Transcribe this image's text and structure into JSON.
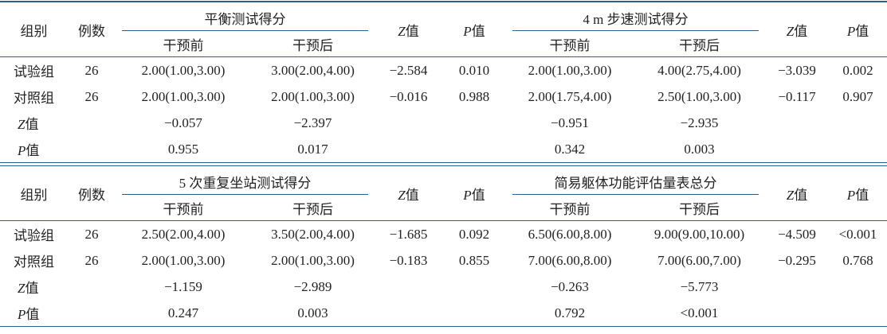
{
  "blocks": [
    {
      "header": {
        "group": "组别",
        "n": "例数",
        "scales": [
          {
            "title": "平衡测试得分",
            "pre": "干预前",
            "post": "干预后",
            "z": {
              "sym": "Z",
              "word": "值"
            },
            "p": {
              "sym": "P",
              "word": "值"
            }
          },
          {
            "title": "4 m 步速测试得分",
            "pre": "干预前",
            "post": "干预后",
            "z": {
              "sym": "Z",
              "word": "值"
            },
            "p": {
              "sym": "P",
              "word": "值"
            }
          }
        ]
      },
      "rows": [
        {
          "label": "试验组",
          "n": "26",
          "values": [
            "2.00(1.00,3.00)",
            "3.00(2.00,4.00)",
            "−2.584",
            "0.010",
            "2.00(1.00,3.00)",
            "4.00(2.75,4.00)",
            "−3.039",
            "0.002"
          ]
        },
        {
          "label": "对照组",
          "n": "26",
          "values": [
            "2.00(1.00,3.00)",
            "2.00(1.00,3.00)",
            "−0.016",
            "0.988",
            "2.00(1.75,4.00)",
            "2.50(1.00,3.00)",
            "−0.117",
            "0.907"
          ]
        },
        {
          "label": {
            "sym": "Z",
            "word": "值"
          },
          "n": null,
          "values": [
            "−0.057",
            "−2.397",
            null,
            null,
            "−0.951",
            "−2.935",
            null,
            null
          ]
        },
        {
          "label": {
            "sym": "P",
            "word": "值"
          },
          "n": null,
          "values": [
            "0.955",
            "0.017",
            null,
            null,
            "0.342",
            "0.003",
            null,
            null
          ]
        }
      ]
    },
    {
      "header": {
        "group": "组别",
        "n": "例数",
        "scales": [
          {
            "title": "5 次重复坐站测试得分",
            "pre": "干预前",
            "post": "干预后",
            "z": {
              "sym": "Z",
              "word": "值"
            },
            "p": {
              "sym": "P",
              "word": "值"
            }
          },
          {
            "title": "简易躯体功能评估量表总分",
            "pre": "干预前",
            "post": "干预后",
            "z": {
              "sym": "Z",
              "word": "值"
            },
            "p": {
              "sym": "P",
              "word": "值"
            }
          }
        ]
      },
      "rows": [
        {
          "label": "试验组",
          "n": "26",
          "values": [
            "2.50(2.00,4.00)",
            "3.50(2.00,4.00)",
            "−1.685",
            "0.092",
            "6.50(6.00,8.00)",
            "9.00(9.00,10.00)",
            "−4.509",
            "<0.001"
          ]
        },
        {
          "label": "对照组",
          "n": "26",
          "values": [
            "2.00(1.00,3.00)",
            "2.00(1.00,3.00)",
            "−0.183",
            "0.855",
            "7.00(6.00,8.00)",
            "7.00(6.00,7.00)",
            "−0.295",
            "0.768"
          ]
        },
        {
          "label": {
            "sym": "Z",
            "word": "值"
          },
          "n": null,
          "values": [
            "−1.159",
            "−2.989",
            null,
            null,
            "−0.263",
            "−5.773",
            null,
            null
          ]
        },
        {
          "label": {
            "sym": "P",
            "word": "值"
          },
          "n": null,
          "values": [
            "0.247",
            "0.003",
            null,
            null,
            "0.792",
            "<0.001",
            null,
            null
          ]
        }
      ]
    }
  ]
}
